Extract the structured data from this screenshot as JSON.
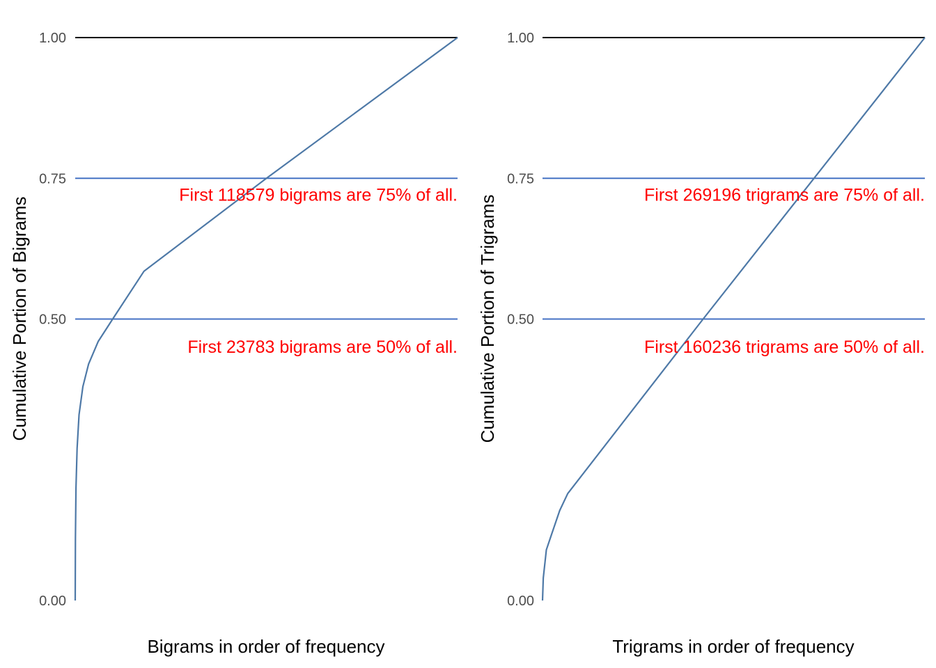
{
  "chart_data": [
    {
      "type": "line",
      "xlabel": "Bigrams in order of frequency",
      "ylabel": "Cumulative Portion of Bigrams",
      "ylim": [
        0,
        1
      ],
      "yticks": [
        "0.00",
        "0.50",
        "0.75",
        "1.00"
      ],
      "ytick_values": [
        0,
        0.5,
        0.75,
        1
      ],
      "grid": false,
      "x_ticks_shown": false,
      "xlim": [
        0,
        1
      ],
      "series": [
        {
          "x": [
            0,
            0.0005,
            0.002,
            0.005,
            0.01,
            0.02,
            0.035,
            0.06,
            0.098,
            0.18,
            0.5,
            0.75,
            1.0
          ],
          "y": [
            0,
            0.11,
            0.2,
            0.27,
            0.33,
            0.38,
            0.42,
            0.46,
            0.5,
            0.585,
            0.75,
            0.875,
            1.0
          ]
        }
      ],
      "hlines": [
        {
          "y": 1.0,
          "color": "#000000"
        },
        {
          "y": 0.75,
          "color": "#4472c4"
        },
        {
          "y": 0.5,
          "color": "#4472c4"
        }
      ],
      "annotations": [
        {
          "text": "First  118579  bigrams are 75% of all.",
          "y": 0.71
        },
        {
          "text": "First  23783  bigrams are 50% of all.",
          "y": 0.44
        }
      ],
      "line_color": "#4e79a7"
    },
    {
      "type": "line",
      "xlabel": "Trigrams in order of frequency",
      "ylabel": "Cumulative Portion of Trigrams",
      "ylim": [
        0,
        1
      ],
      "yticks": [
        "0.00",
        "0.50",
        "0.75",
        "1.00"
      ],
      "ytick_values": [
        0,
        0.5,
        0.75,
        1
      ],
      "grid": false,
      "x_ticks_shown": false,
      "xlim": [
        0,
        1
      ],
      "series": [
        {
          "x": [
            0,
            0.002,
            0.01,
            0.025,
            0.045,
            0.066,
            0.42,
            0.71,
            1.0
          ],
          "y": [
            0,
            0.04,
            0.09,
            0.12,
            0.16,
            0.19,
            0.5,
            0.75,
            1.0
          ]
        }
      ],
      "hlines": [
        {
          "y": 1.0,
          "color": "#000000"
        },
        {
          "y": 0.75,
          "color": "#4472c4"
        },
        {
          "y": 0.5,
          "color": "#4472c4"
        }
      ],
      "annotations": [
        {
          "text": "First  269196  trigrams are 75% of all.",
          "y": 0.71
        },
        {
          "text": "First  160236  trigrams are 50% of all.",
          "y": 0.44
        }
      ],
      "line_color": "#4e79a7"
    }
  ]
}
